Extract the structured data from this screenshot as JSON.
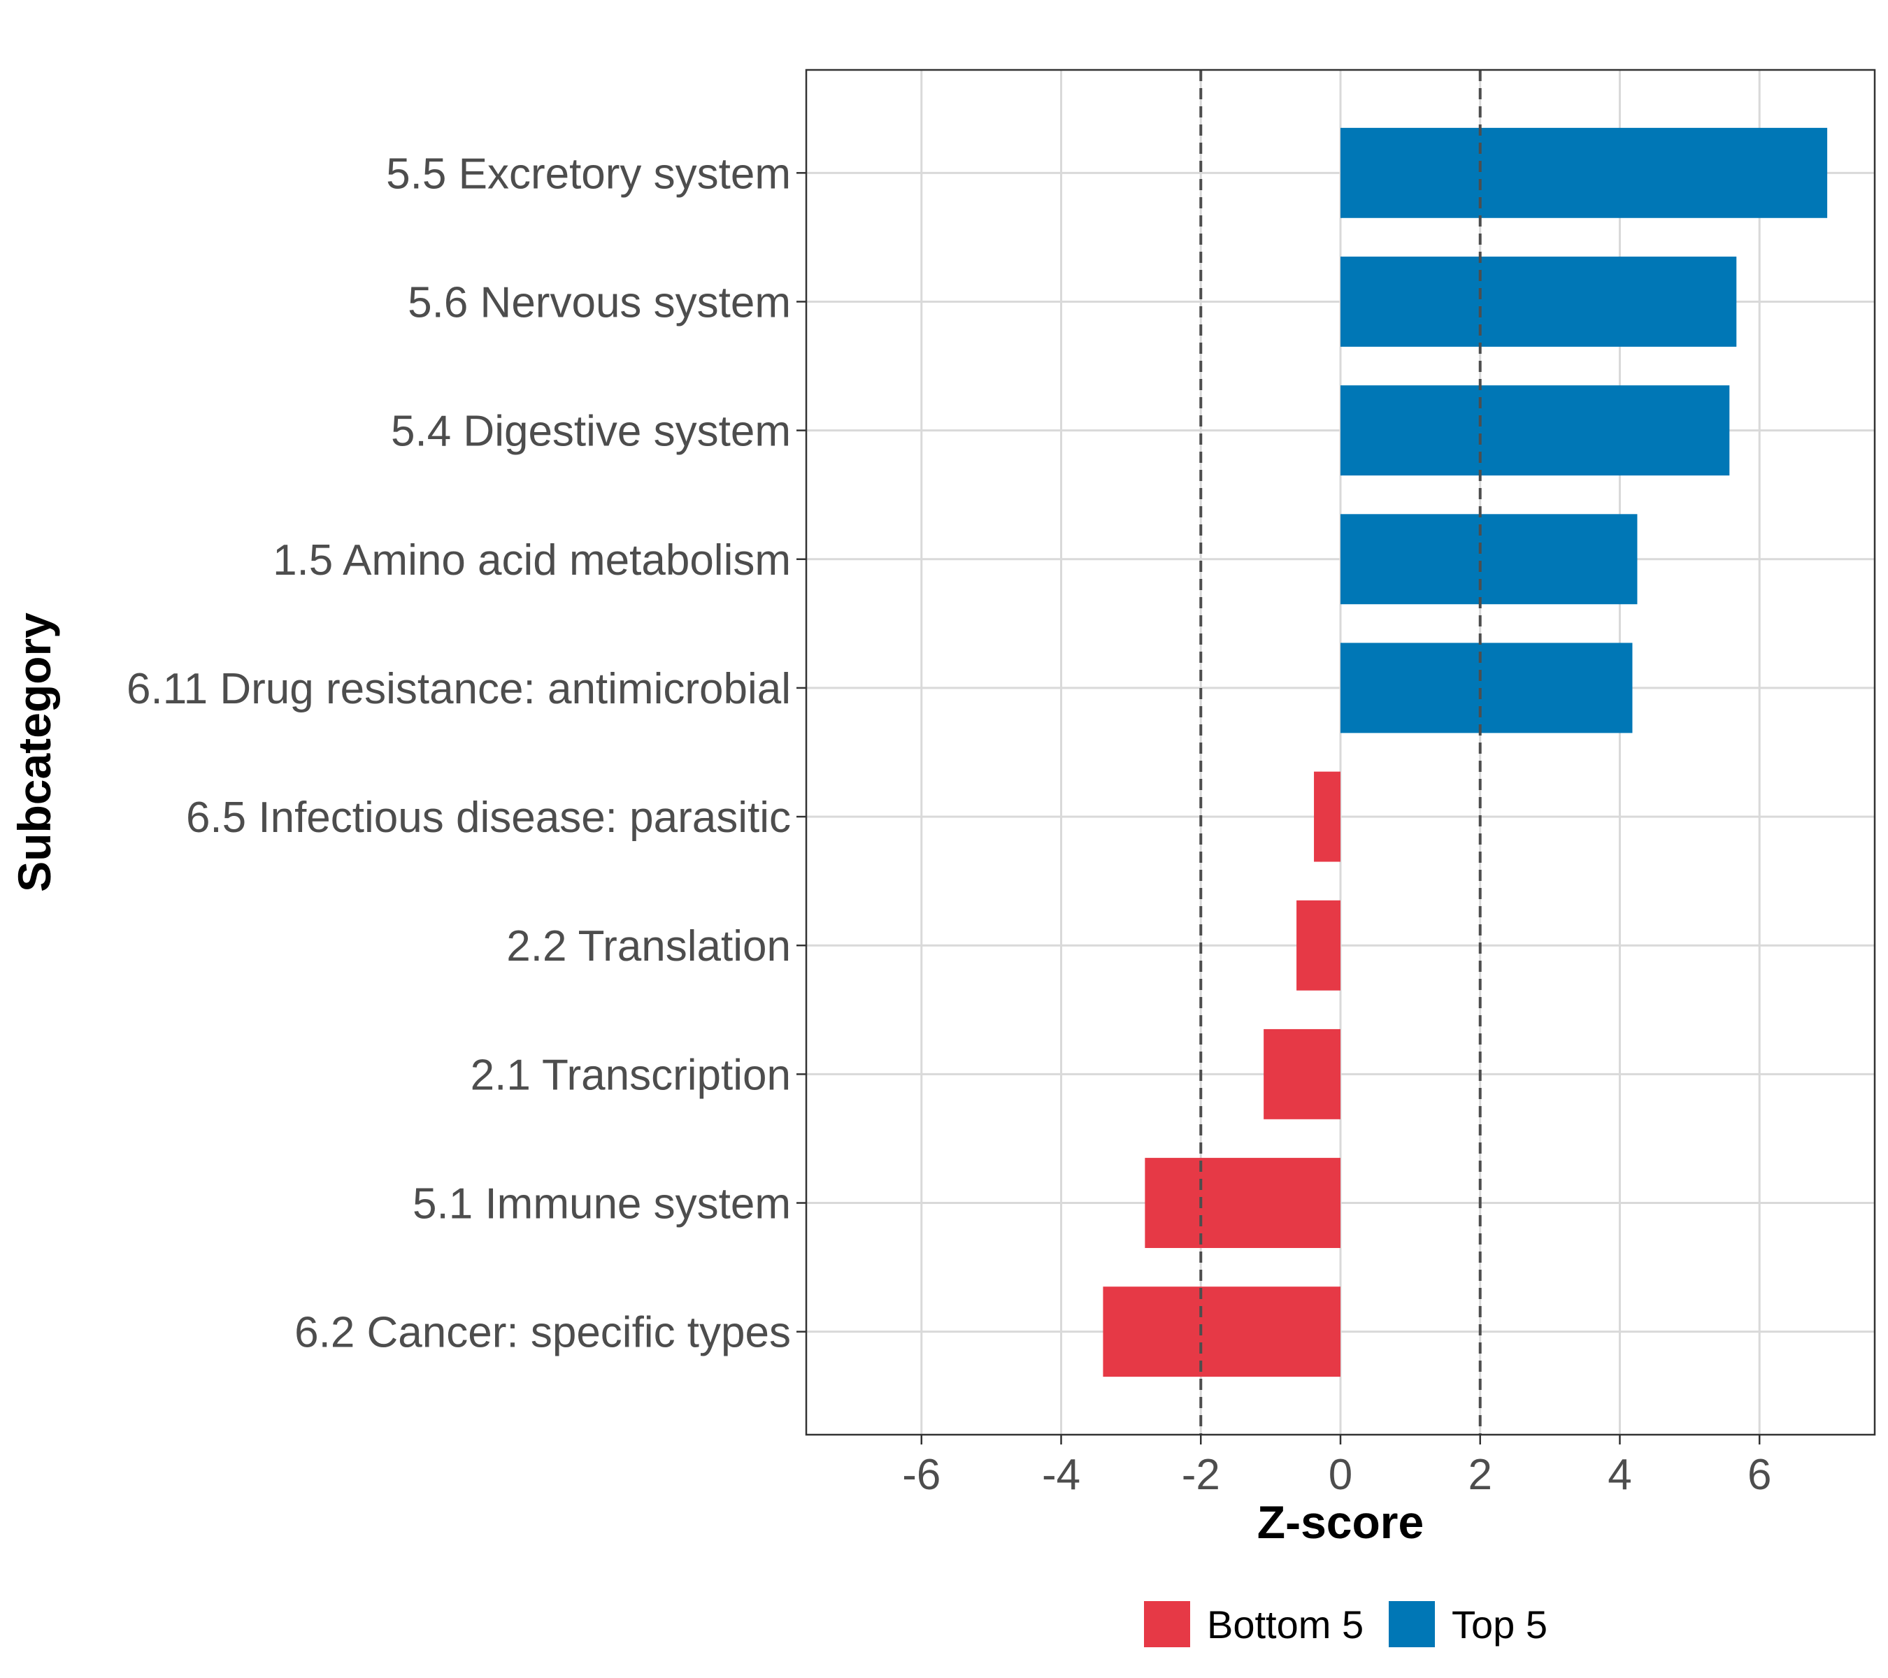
{
  "chart_data": {
    "type": "bar",
    "orientation": "horizontal",
    "categories": [
      "5.5 Excretory system",
      "5.6 Nervous system",
      "5.4 Digestive system",
      "1.5 Amino acid metabolism",
      "6.11 Drug resistance: antimicrobial",
      "6.5 Infectious disease: parasitic",
      "2.2 Translation",
      "2.1 Transcription",
      "5.1 Immune system",
      "6.2 Cancer: specific types"
    ],
    "values": [
      6.97,
      5.67,
      5.57,
      4.25,
      4.18,
      -0.38,
      -0.63,
      -1.1,
      -2.8,
      -3.4
    ],
    "groups": [
      "Top 5",
      "Top 5",
      "Top 5",
      "Top 5",
      "Top 5",
      "Bottom 5",
      "Bottom 5",
      "Bottom 5",
      "Bottom 5",
      "Bottom 5"
    ],
    "xlabel": "Z-score",
    "ylabel": "Subcategory",
    "xlim": [
      -7.65,
      7.65
    ],
    "xticks": [
      -6,
      -4,
      -2,
      0,
      2,
      4,
      6
    ],
    "xtick_labels": [
      "-6",
      "-4",
      "-2",
      "0",
      "2",
      "4",
      "6"
    ],
    "reference_lines": [
      -2,
      2
    ],
    "grid": true,
    "legend": {
      "position": "bottom",
      "entries": [
        {
          "label": "Bottom 5",
          "color": "#e63946"
        },
        {
          "label": "Top 5",
          "color": "#0077b6"
        }
      ]
    },
    "colors": {
      "Top 5": "#0077b6",
      "Bottom 5": "#e63946"
    }
  }
}
